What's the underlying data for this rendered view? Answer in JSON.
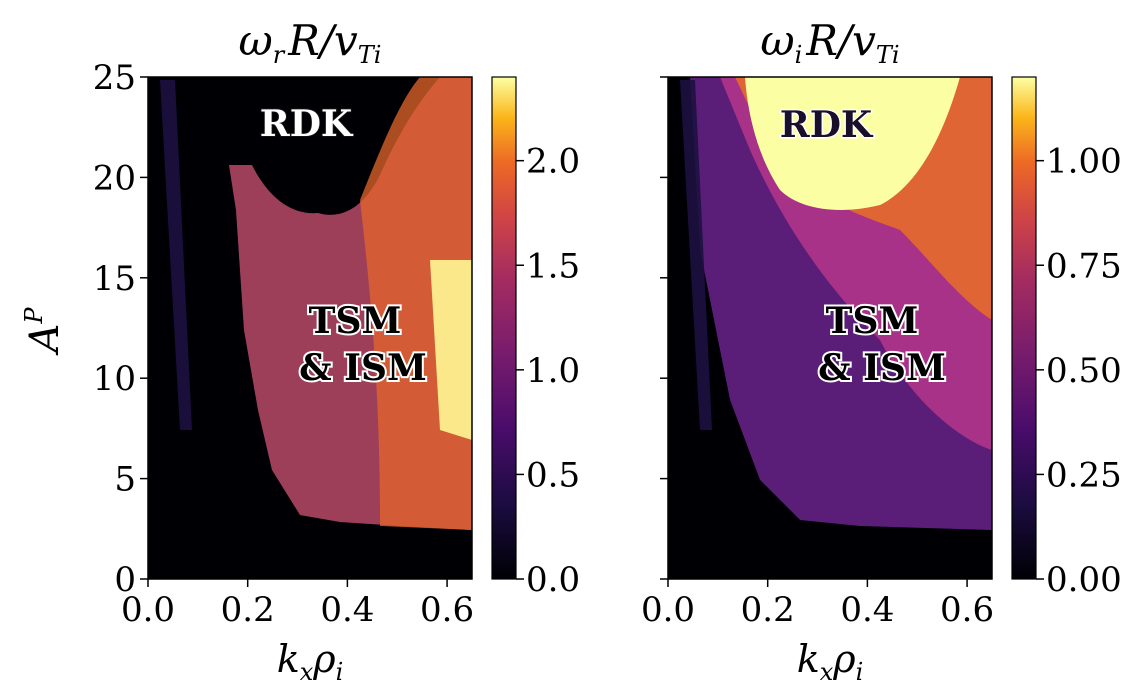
{
  "chart_data": [
    {
      "type": "heatmap",
      "title": "ω_r R/v_Ti",
      "xlabel": "k_x ρ_i",
      "ylabel": "A^P",
      "xlim": [
        0.0,
        0.65
      ],
      "ylim": [
        0,
        25
      ],
      "x_ticks": [
        "0.0",
        "0.2",
        "0.4",
        "0.6"
      ],
      "y_ticks": [
        "0",
        "5",
        "10",
        "15",
        "20",
        "25"
      ],
      "colormap": "inferno",
      "colorbar": {
        "range": [
          0.0,
          2.4
        ],
        "ticks": [
          "0.0",
          "0.5",
          "1.0",
          "1.5",
          "2.0"
        ]
      },
      "annotations": [
        "RDK",
        "TSM",
        "& ISM"
      ],
      "regions": [
        {
          "label": "RDK",
          "x_range": [
            0.17,
            0.65
          ],
          "y_range": [
            18,
            25
          ],
          "value": 0.0
        },
        {
          "label": "TSM & ISM",
          "x_range": [
            0.16,
            0.65
          ],
          "y_range": [
            2.5,
            20.5
          ],
          "value_range": [
            0.6,
            2.4
          ]
        }
      ]
    },
    {
      "type": "heatmap",
      "title": "ω_i R/v_Ti",
      "xlabel": "k_x ρ_i",
      "ylabel": "",
      "xlim": [
        0.0,
        0.65
      ],
      "ylim": [
        0,
        25
      ],
      "x_ticks": [
        "0.0",
        "0.2",
        "0.4",
        "0.6"
      ],
      "y_ticks": [
        "0",
        "5",
        "10",
        "15",
        "20",
        "25"
      ],
      "colormap": "inferno",
      "colorbar": {
        "range": [
          0.0,
          1.2
        ],
        "ticks": [
          "0.00",
          "0.25",
          "0.50",
          "0.75",
          "1.00"
        ]
      },
      "annotations": [
        "RDK",
        "TSM",
        "& ISM"
      ],
      "regions": [
        {
          "label": "RDK",
          "x_range": [
            0.15,
            0.6
          ],
          "y_range": [
            18.5,
            25
          ],
          "value": 1.2
        },
        {
          "label": "TSM & ISM",
          "x_range": [
            0.15,
            0.65
          ],
          "y_range": [
            2.5,
            18.5
          ],
          "value_range": [
            0.3,
            1.0
          ]
        }
      ]
    }
  ],
  "ui": {
    "panel1": {
      "title_main": "ω",
      "title_sub1": "r",
      "title_mid": "R/v",
      "title_sub2": "Ti",
      "xlabel_main": "k",
      "xlabel_sub1": "x",
      "xlabel_mid": "ρ",
      "xlabel_sub2": "i",
      "ylabel_main": "A",
      "ylabel_sup": "P",
      "annot_top": "RDK",
      "annot_mid1": "TSM",
      "annot_mid2": "& ISM"
    },
    "panel2": {
      "title_main": "ω",
      "title_sub1": "i",
      "title_mid": "R/v",
      "title_sub2": "Ti",
      "xlabel_main": "k",
      "xlabel_sub1": "x",
      "xlabel_mid": "ρ",
      "xlabel_sub2": "i",
      "annot_top": "RDK",
      "annot_mid1": "TSM",
      "annot_mid2": "& ISM"
    }
  }
}
